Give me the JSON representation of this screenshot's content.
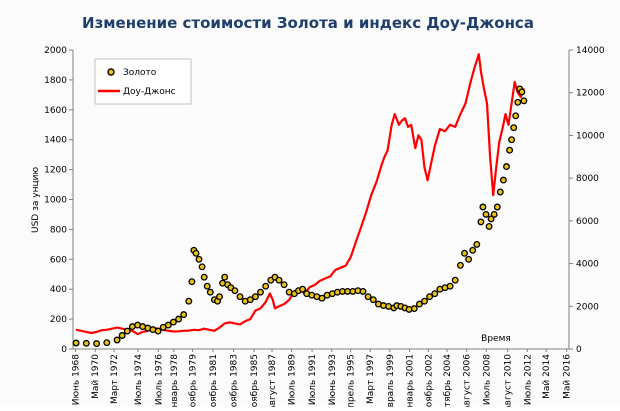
{
  "chart_data": {
    "type": "line",
    "title": "Изменение стоимости Золота и индекс Доу-Джонса",
    "ylabel_left": "USD за унцию",
    "xlabel": "Время",
    "ylim_left": [
      0,
      2000
    ],
    "ylim_right": [
      0,
      14000
    ],
    "yticks_left": [
      0,
      200,
      400,
      600,
      800,
      1000,
      1200,
      1400,
      1600,
      1800,
      2000
    ],
    "yticks_right": [
      0,
      2000,
      4000,
      6000,
      8000,
      10000,
      12000,
      14000
    ],
    "xlim": [
      1968.2,
      2016.6
    ],
    "xtick_labels": [
      "Июнь 1968",
      "Май 1970",
      "Март 1972",
      "Июль 1974",
      "Июль 1976",
      "Январь 1978",
      "Ноябрь 1979",
      "Ноябрь 1981",
      "Ноябрь 1983",
      "Ноябрь 1985",
      "Август 1987",
      "Июль 1989",
      "Июль 1991",
      "Июнь 1993",
      "Апрель 1995",
      "Март 1997",
      "Февраль 1999",
      "Январь 2001",
      "Ноябрь 2002",
      "Сентябрь 2004",
      "Август 2006",
      "Июль 2008",
      "Август 2010",
      "Июль 2012",
      "Май 2014",
      "Май 2016"
    ],
    "xtick_years": [
      1968.45,
      1970.37,
      1972.2,
      1974.53,
      1976.53,
      1978.04,
      1979.87,
      1981.87,
      1983.87,
      1985.87,
      1987.62,
      1989.53,
      1991.53,
      1993.45,
      1995.29,
      1997.2,
      1999.12,
      2001.04,
      2002.87,
      2004.7,
      2006.62,
      2008.53,
      2010.62,
      2012.53,
      2014.37,
      2016.37
    ],
    "grid": false,
    "legend_position": "top-left",
    "series": [
      {
        "name": "Золото",
        "axis": "left",
        "color": "#000000",
        "marker_fill": "#e8c21a",
        "style": "dots",
        "x": [
          1968.5,
          1969.5,
          1970.5,
          1971.5,
          1972.5,
          1973.0,
          1973.5,
          1974.0,
          1974.5,
          1975.0,
          1975.5,
          1976.0,
          1976.5,
          1977.0,
          1977.5,
          1978.0,
          1978.5,
          1979.0,
          1979.5,
          1979.8,
          1980.0,
          1980.2,
          1980.5,
          1980.8,
          1981.0,
          1981.3,
          1981.6,
          1982.0,
          1982.3,
          1982.5,
          1982.8,
          1983.0,
          1983.3,
          1983.6,
          1984.0,
          1984.5,
          1985.0,
          1985.5,
          1986.0,
          1986.5,
          1987.0,
          1987.5,
          1987.9,
          1988.3,
          1988.8,
          1989.3,
          1989.8,
          1990.2,
          1990.6,
          1991.0,
          1991.5,
          1992.0,
          1992.5,
          1993.0,
          1993.5,
          1994.0,
          1994.5,
          1995.0,
          1995.5,
          1996.0,
          1996.5,
          1997.0,
          1997.5,
          1998.0,
          1998.5,
          1999.0,
          1999.5,
          1999.8,
          2000.2,
          2000.6,
          2001.0,
          2001.5,
          2002.0,
          2002.5,
          2003.0,
          2003.5,
          2004.0,
          2004.5,
          2005.0,
          2005.5,
          2006.0,
          2006.4,
          2006.8,
          2007.2,
          2007.6,
          2008.0,
          2008.2,
          2008.5,
          2008.8,
          2009.0,
          2009.3,
          2009.6,
          2009.9,
          2010.2,
          2010.5,
          2010.8,
          2011.0,
          2011.2,
          2011.4,
          2011.6,
          2011.8,
          2012.0,
          2012.2
        ],
        "y": [
          40,
          38,
          36,
          42,
          60,
          90,
          120,
          150,
          160,
          150,
          140,
          130,
          120,
          145,
          160,
          180,
          200,
          230,
          320,
          450,
          660,
          640,
          600,
          550,
          480,
          420,
          380,
          330,
          320,
          350,
          440,
          480,
          430,
          410,
          390,
          350,
          320,
          330,
          350,
          380,
          420,
          460,
          480,
          460,
          430,
          380,
          370,
          390,
          400,
          370,
          360,
          350,
          340,
          360,
          370,
          380,
          385,
          385,
          385,
          390,
          385,
          350,
          330,
          300,
          290,
          285,
          275,
          290,
          285,
          275,
          265,
          270,
          300,
          320,
          350,
          370,
          400,
          410,
          420,
          460,
          560,
          640,
          600,
          660,
          700,
          850,
          950,
          900,
          820,
          870,
          900,
          950,
          1050,
          1130,
          1220,
          1330,
          1400,
          1480,
          1560,
          1650,
          1740,
          1720,
          1660
        ]
      },
      {
        "name": "Доу-Джонс",
        "axis": "right",
        "color": "#ff0000",
        "style": "line",
        "x": [
          1968.5,
          1969.0,
          1969.5,
          1970.0,
          1970.5,
          1971.0,
          1971.5,
          1972.0,
          1972.5,
          1973.0,
          1973.5,
          1974.0,
          1974.5,
          1975.0,
          1975.5,
          1976.0,
          1976.5,
          1977.0,
          1977.5,
          1978.0,
          1978.5,
          1979.0,
          1979.5,
          1980.0,
          1980.5,
          1981.0,
          1981.5,
          1982.0,
          1982.5,
          1983.0,
          1983.5,
          1984.0,
          1984.5,
          1985.0,
          1985.5,
          1986.0,
          1986.5,
          1987.0,
          1987.4,
          1987.7,
          1987.9,
          1988.3,
          1988.8,
          1989.3,
          1989.8,
          1990.3,
          1990.8,
          1991.3,
          1991.8,
          1992.3,
          1992.8,
          1993.3,
          1993.8,
          1994.3,
          1994.8,
          1995.3,
          1995.8,
          1996.3,
          1996.8,
          1997.3,
          1997.8,
          1998.3,
          1998.6,
          1998.9,
          1999.3,
          1999.6,
          2000.0,
          2000.3,
          2000.6,
          2000.9,
          2001.2,
          2001.6,
          2001.9,
          2002.2,
          2002.5,
          2002.8,
          2003.1,
          2003.5,
          2004.0,
          2004.5,
          2005.0,
          2005.5,
          2006.0,
          2006.5,
          2007.0,
          2007.4,
          2007.8,
          2008.0,
          2008.3,
          2008.6,
          2008.9,
          2009.2,
          2009.5,
          2009.8,
          2010.1,
          2010.4,
          2010.7,
          2011.0,
          2011.3,
          2011.6,
          2011.9,
          2012.2
        ],
        "y": [
          900,
          850,
          800,
          750,
          800,
          880,
          900,
          950,
          1000,
          950,
          900,
          850,
          700,
          800,
          850,
          980,
          950,
          900,
          850,
          820,
          830,
          850,
          860,
          900,
          880,
          950,
          900,
          850,
          1000,
          1200,
          1250,
          1200,
          1150,
          1300,
          1400,
          1800,
          1900,
          2200,
          2600,
          2300,
          1900,
          2000,
          2100,
          2300,
          2700,
          2800,
          2600,
          2900,
          3000,
          3200,
          3300,
          3400,
          3700,
          3800,
          3900,
          4300,
          5000,
          5700,
          6400,
          7200,
          7800,
          8600,
          9000,
          9300,
          10500,
          11000,
          10500,
          10700,
          10800,
          10400,
          10500,
          9400,
          10000,
          9800,
          8500,
          7900,
          8600,
          9500,
          10300,
          10200,
          10500,
          10400,
          11000,
          11500,
          12500,
          13200,
          13800,
          13000,
          12200,
          11500,
          9000,
          7200,
          8500,
          9700,
          10300,
          11000,
          10500,
          11500,
          12500,
          12000,
          11800,
          12200
        ]
      }
    ]
  }
}
